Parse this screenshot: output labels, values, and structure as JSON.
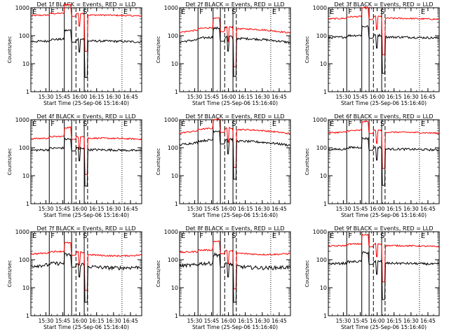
{
  "colors": {
    "events": "#000000",
    "lld": "#ff0000",
    "frame": "#000000"
  },
  "chart_data": {
    "type": "line",
    "yscale": "log",
    "ylim": [
      1,
      1000
    ],
    "ylabel": "Counts/sec",
    "xlabel": "Start Time (25-Sep-06 15:16:40)",
    "x_range": [
      "15:16:40",
      "16:55:00"
    ],
    "ytick_labels": [
      "1",
      "10",
      "100",
      "1000"
    ],
    "xtick_labels": [
      "15:30",
      "15:45",
      "16:00",
      "16:15",
      "16:30",
      "16:45"
    ],
    "marker_labels": [
      "E",
      "F",
      "S",
      "E"
    ],
    "markers": [
      {
        "label": "E",
        "time": "15:16:40",
        "style": "solid"
      },
      {
        "label": "F",
        "time": "15:33:00",
        "style": "solid"
      },
      {
        "label": "",
        "time": "15:46:20",
        "style": "solid"
      },
      {
        "label": "",
        "time": "15:52:50",
        "style": "solid"
      },
      {
        "label": "",
        "time": "15:56:40",
        "style": "dashed"
      },
      {
        "label": "S",
        "time": "16:04:00",
        "style": "solid"
      },
      {
        "label": "",
        "time": "16:07:00",
        "style": "dashed"
      },
      {
        "label": "E",
        "time": "16:37:30",
        "style": "dotted"
      }
    ],
    "panels": [
      {
        "title": "Det 1f BLACK = Events, RED = LLD",
        "events_level": 65,
        "lld_level": 550,
        "shape": "flat"
      },
      {
        "title": "Det 2f BLACK = Events, RED = LLD",
        "events_level": 70,
        "lld_level": 155,
        "shape": "rise"
      },
      {
        "title": "Det 3f BLACK = Events, RED = LLD",
        "events_level": 90,
        "lld_level": 420,
        "shape": "flat"
      },
      {
        "title": "Det 4f BLACK = Events, RED = LLD",
        "events_level": 85,
        "lld_level": 220,
        "shape": "flat"
      },
      {
        "title": "Det 5f BLACK = Events, RED = LLD",
        "events_level": 150,
        "lld_level": 390,
        "shape": "rise"
      },
      {
        "title": "Det 6f BLACK = Events, RED = LLD",
        "events_level": 90,
        "lld_level": 360,
        "shape": "flat"
      },
      {
        "title": "Det 7f BLACK = Events, RED = LLD",
        "events_level": 60,
        "lld_level": 160,
        "shape": "noisy"
      },
      {
        "title": "Det 8f BLACK = Events, RED = LLD",
        "events_level": 60,
        "lld_level": 180,
        "shape": "noisy"
      },
      {
        "title": "Det 9f BLACK = Events, RED = LLD",
        "events_level": 75,
        "lld_level": 320,
        "shape": "flat"
      }
    ]
  }
}
